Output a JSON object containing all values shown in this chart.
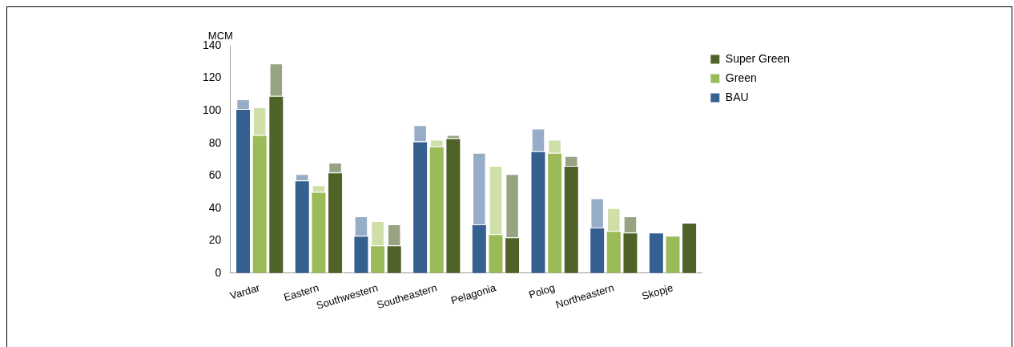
{
  "chart_data": {
    "type": "bar",
    "ylabel": "MCM",
    "categories": [
      "Vardar",
      "Eastern",
      "Southwestern",
      "Southeastern",
      "Pelagonia",
      "Polog",
      "Northeastern",
      "Skopje"
    ],
    "ylim": [
      0,
      140
    ],
    "yticks": [
      0,
      20,
      40,
      60,
      80,
      100,
      120,
      140
    ],
    "grid": false,
    "legend": "top right",
    "series": [
      {
        "name": "BAU",
        "color": "#35608f",
        "values": [
          101,
          57,
          23,
          81,
          30,
          75,
          28,
          25
        ]
      },
      {
        "color": "#96acc7",
        "base": [
          101,
          57,
          23,
          81,
          30,
          75,
          28,
          null
        ],
        "values": [
          6,
          4,
          12,
          10,
          44,
          14,
          18,
          null
        ]
      },
      {
        "name": "Green",
        "color": "#9bbb59",
        "values": [
          85,
          50,
          17,
          78,
          24,
          74,
          26,
          23
        ]
      },
      {
        "color": "#cfdfa8",
        "base": [
          85,
          50,
          17,
          78,
          24,
          74,
          26,
          null
        ],
        "values": [
          17,
          4,
          15,
          4,
          42,
          8,
          14,
          null
        ]
      },
      {
        "name": "Super Green",
        "color": "#4f6228",
        "values": [
          109,
          62,
          17,
          83,
          22,
          66,
          25,
          31
        ]
      },
      {
        "color": "#98a382",
        "base": [
          109,
          62,
          17,
          83,
          22,
          66,
          25,
          null
        ],
        "values": [
          20,
          6,
          13,
          2,
          39,
          6,
          10,
          null
        ]
      }
    ]
  }
}
